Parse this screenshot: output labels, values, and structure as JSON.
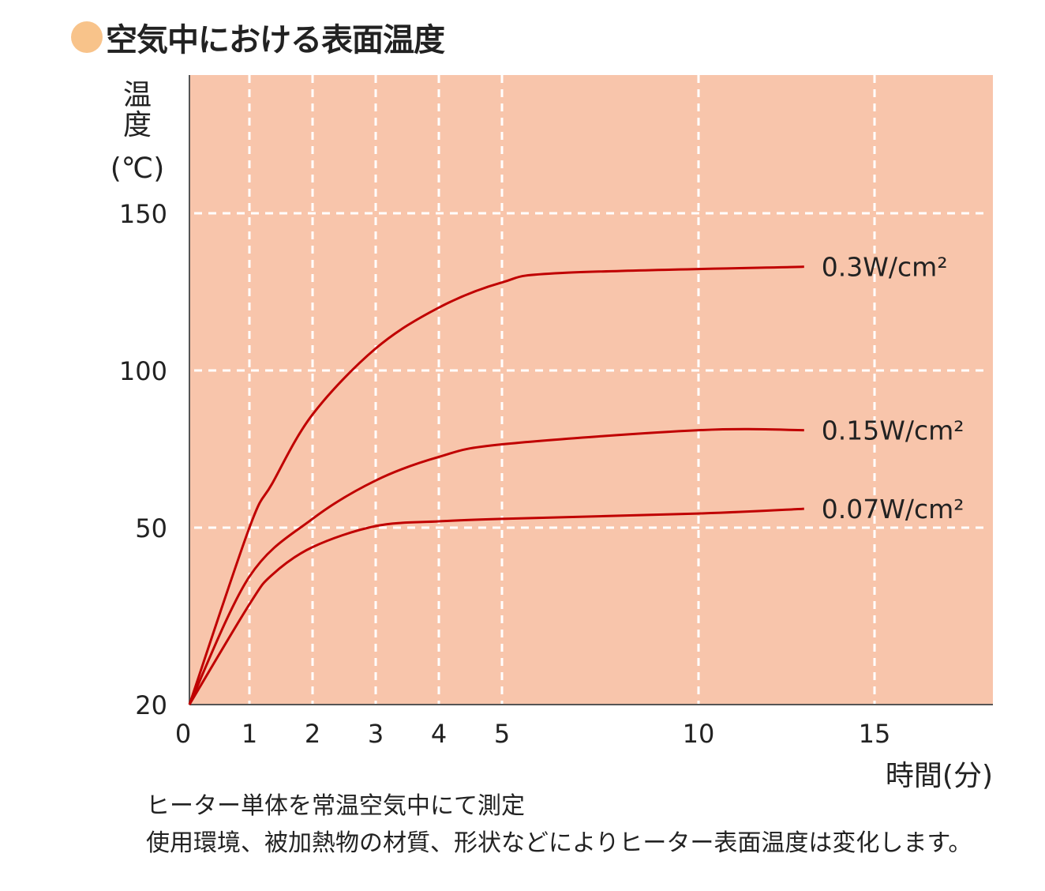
{
  "title": "空気中における表面温度",
  "colors": {
    "title_dot": "#f8c38a",
    "plot_bg": "#f8c5ab",
    "line": "#c00000",
    "grid": "#ffffff",
    "axis": "#555555"
  },
  "notes": [
    "ヒーター単体を常温空気中にて測定",
    "使用環境、被加熱物の材質、形状などによりヒーター表面温度は変化します。"
  ],
  "chart_data": {
    "type": "line",
    "ylabel": [
      "温",
      "度",
      "(℃)"
    ],
    "xlabel": "時間(分)",
    "x_ticks": [
      0,
      1,
      2,
      3,
      4,
      5,
      10,
      15
    ],
    "y_ticks": [
      20,
      50,
      100,
      150
    ],
    "xlim": [
      0,
      18.4
    ],
    "ylim": [
      20,
      190
    ],
    "grid": true,
    "series": [
      {
        "name": "0.3W/cm²",
        "x": [
          0,
          1,
          1.36,
          2,
          3,
          4,
          5,
          6.5,
          13
        ],
        "y": [
          20,
          50,
          64,
          86,
          107,
          120,
          128,
          131,
          133
        ]
      },
      {
        "name": "0.15W/cm²",
        "x": [
          0,
          1,
          2,
          3,
          4,
          5,
          10,
          13
        ],
        "y": [
          20,
          41.7,
          52.8,
          65,
          72.5,
          76.5,
          81,
          81
        ]
      },
      {
        "name": "0.07W/cm²",
        "x": [
          0,
          1,
          1.36,
          2,
          3,
          4,
          5,
          10,
          13
        ],
        "y": [
          20,
          37,
          42,
          46.7,
          50.5,
          52,
          52.8,
          54.5,
          56
        ]
      }
    ]
  }
}
